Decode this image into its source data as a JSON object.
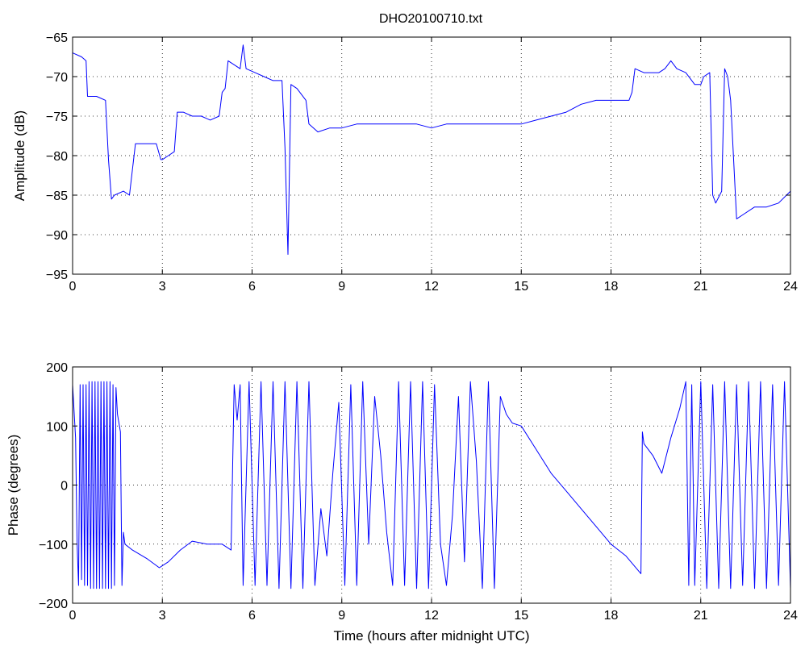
{
  "figure": {
    "title": "DHO20100710.txt"
  },
  "chart_data": [
    {
      "type": "line",
      "title": "DHO20100710.txt",
      "xlabel": "",
      "ylabel": "Amplitude (dB)",
      "xlim": [
        0,
        24
      ],
      "ylim": [
        -95,
        -65
      ],
      "xticks": [
        0,
        3,
        6,
        9,
        12,
        15,
        18,
        21,
        24
      ],
      "yticks": [
        -95,
        -90,
        -85,
        -80,
        -75,
        -70,
        -65
      ],
      "grid": true,
      "color": "#0000ff",
      "series": [
        {
          "x": [
            0,
            0.3,
            0.45,
            0.5,
            0.8,
            1.1,
            1.2,
            1.3,
            1.4,
            1.7,
            1.9,
            2.1,
            2.2,
            2.5,
            2.8,
            2.95,
            3.0,
            3.2,
            3.4,
            3.5,
            3.7,
            4.0,
            4.3,
            4.6,
            4.9,
            5.0,
            5.1,
            5.2,
            5.4,
            5.6,
            5.7,
            5.8,
            6.1,
            6.4,
            6.7,
            7.0,
            7.1,
            7.2,
            7.3,
            7.5,
            7.8,
            7.9,
            8.2,
            8.6,
            9.0,
            9.5,
            10,
            10.5,
            11,
            11.5,
            12,
            12.5,
            13,
            13.5,
            14,
            14.5,
            15,
            15.5,
            16,
            16.5,
            17,
            17.5,
            18,
            18.3,
            18.6,
            18.7,
            18.8,
            19.1,
            19.4,
            19.6,
            19.8,
            20.0,
            20.2,
            20.5,
            20.8,
            21.0,
            21.1,
            21.3,
            21.4,
            21.5,
            21.7,
            21.8,
            21.9,
            22.0,
            22.2,
            22.4,
            22.8,
            23.2,
            23.6,
            24.0
          ],
          "values": [
            -67,
            -67.5,
            -68,
            -72.5,
            -72.5,
            -73,
            -80.5,
            -85.5,
            -85,
            -84.5,
            -85,
            -78.5,
            -78.5,
            -78.5,
            -78.5,
            -80.5,
            -80.5,
            -80,
            -79.5,
            -74.5,
            -74.5,
            -75,
            -75,
            -75.5,
            -75,
            -72,
            -71.5,
            -68,
            -68.5,
            -69,
            -66,
            -69,
            -69.5,
            -70,
            -70.5,
            -70.5,
            -79,
            -92.5,
            -71,
            -71.5,
            -73,
            -76,
            -77,
            -76.5,
            -76.5,
            -76,
            -76,
            -76,
            -76,
            -76,
            -76.5,
            -76,
            -76,
            -76,
            -76,
            -76,
            -76,
            -75.5,
            -75,
            -74.5,
            -73.5,
            -73,
            -73,
            -73,
            -73,
            -72,
            -69,
            -69.5,
            -69.5,
            -69.5,
            -69,
            -68,
            -69,
            -69.5,
            -71,
            -71,
            -70,
            -69.5,
            -85,
            -86,
            -84.5,
            -69,
            -70,
            -73,
            -88,
            -87.5,
            -86.5,
            -86.5,
            -86,
            -84.5
          ]
        }
      ]
    },
    {
      "type": "line",
      "title": "",
      "xlabel": "Time (hours after midnight UTC)",
      "ylabel": "Phase (degrees)",
      "xlim": [
        0,
        24
      ],
      "ylim": [
        -200,
        200
      ],
      "xticks": [
        0,
        3,
        6,
        9,
        12,
        15,
        18,
        21,
        24
      ],
      "yticks": [
        -200,
        -100,
        0,
        100,
        200
      ],
      "grid": true,
      "color": "#0000ff",
      "series": [
        {
          "x": [
            0,
            0.1,
            0.15,
            0.2,
            0.25,
            0.3,
            0.35,
            0.4,
            0.45,
            0.5,
            0.55,
            0.6,
            0.65,
            0.7,
            0.75,
            0.8,
            0.85,
            0.9,
            0.95,
            1.0,
            1.05,
            1.1,
            1.15,
            1.2,
            1.25,
            1.3,
            1.35,
            1.4,
            1.45,
            1.5,
            1.6,
            1.65,
            1.7,
            1.75,
            2.0,
            2.5,
            2.9,
            3.2,
            3.6,
            4.0,
            4.5,
            5.0,
            5.3,
            5.4,
            5.5,
            5.6,
            5.7,
            5.9,
            6.1,
            6.3,
            6.5,
            6.7,
            6.9,
            7.1,
            7.3,
            7.5,
            7.7,
            7.9,
            8.1,
            8.3,
            8.5,
            8.7,
            8.9,
            9.1,
            9.3,
            9.5,
            9.7,
            9.9,
            10.1,
            10.3,
            10.5,
            10.7,
            10.9,
            11.1,
            11.3,
            11.5,
            11.7,
            11.9,
            12.1,
            12.3,
            12.5,
            12.7,
            12.9,
            13.1,
            13.3,
            13.5,
            13.7,
            13.9,
            14.1,
            14.3,
            14.5,
            14.7,
            15.0,
            15.5,
            16.0,
            16.5,
            17.0,
            17.5,
            18.0,
            18.5,
            19.0,
            19.05,
            19.1,
            19.4,
            19.7,
            20.0,
            20.3,
            20.5,
            20.6,
            20.7,
            20.8,
            21.0,
            21.2,
            21.4,
            21.6,
            21.8,
            22.0,
            22.2,
            22.4,
            22.6,
            22.8,
            23.0,
            23.2,
            23.4,
            23.6,
            23.8,
            24.0
          ],
          "values": [
            170,
            80,
            -100,
            -170,
            170,
            -160,
            170,
            -170,
            170,
            -170,
            175,
            -175,
            175,
            -175,
            175,
            -175,
            175,
            -175,
            175,
            -175,
            175,
            -175,
            175,
            -175,
            175,
            -175,
            170,
            -170,
            165,
            120,
            90,
            -170,
            -80,
            -100,
            -110,
            -125,
            -140,
            -130,
            -110,
            -95,
            -100,
            -100,
            -110,
            170,
            110,
            170,
            -170,
            175,
            -170,
            175,
            -170,
            175,
            -175,
            175,
            -175,
            175,
            -175,
            175,
            -170,
            -40,
            -120,
            20,
            140,
            -170,
            170,
            -170,
            175,
            -100,
            150,
            50,
            -80,
            -170,
            175,
            -170,
            175,
            -175,
            175,
            -175,
            170,
            -100,
            -170,
            -50,
            150,
            -130,
            175,
            40,
            -175,
            175,
            -175,
            150,
            120,
            105,
            100,
            60,
            20,
            -10,
            -40,
            -70,
            -100,
            -120,
            -150,
            90,
            70,
            50,
            20,
            80,
            130,
            175,
            -170,
            170,
            -170,
            175,
            -175,
            170,
            -175,
            175,
            -175,
            170,
            -170,
            175,
            -175,
            175,
            -175,
            170,
            -170,
            175,
            -175
          ]
        }
      ]
    }
  ]
}
